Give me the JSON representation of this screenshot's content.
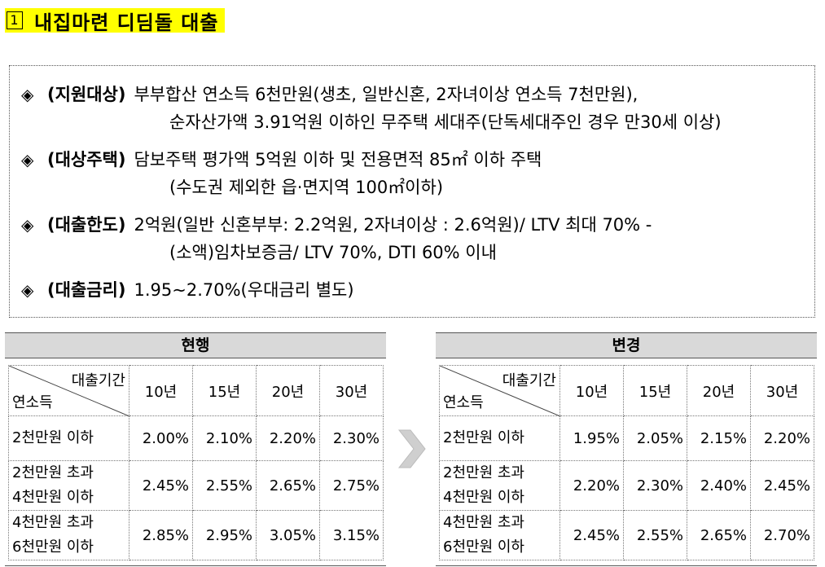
{
  "title": {
    "number": "1",
    "text": "내집마련 디딤돌 대출"
  },
  "info": {
    "bullet": "◈",
    "rows": [
      {
        "label": "(지원대상)",
        "line1": "부부합산 연소득 6천만원(생초, 일반신혼, 2자녀이상 연소득 7천만원),",
        "line2": "순자산가액 3.91억원 이하인 무주택 세대주(단독세대주인 경우 만30세 이상)"
      },
      {
        "label": "(대상주택)",
        "line1": "담보주택 평가액 5억원 이하 및 전용면적 85㎡ 이하 주택",
        "line2": "(수도권 제외한 읍·면지역 100㎡이하)"
      },
      {
        "label": "(대출한도)",
        "line1": "2억원(일반 신혼부부: 2.2억원, 2자녀이상 : 2.6억원)/ LTV 최대 70% -",
        "line2": "(소액)임차보증금/ LTV 70%, DTI 60% 이내"
      },
      {
        "label": "(대출금리)",
        "line1": "1.95∼2.70%(우대금리 별도)",
        "line2": ""
      }
    ]
  },
  "current": {
    "header": "현행",
    "corner_top": "대출기간",
    "corner_bottom": "연소득",
    "periods": [
      "10년",
      "15년",
      "20년",
      "30년"
    ],
    "rows": [
      {
        "income1": "2천만원 이하",
        "income2": "",
        "rates": [
          "2.00%",
          "2.10%",
          "2.20%",
          "2.30%"
        ]
      },
      {
        "income1": "2천만원 초과",
        "income2": "4천만원 이하",
        "rates": [
          "2.45%",
          "2.55%",
          "2.65%",
          "2.75%"
        ]
      },
      {
        "income1": "4천만원 초과",
        "income2": "6천만원 이하",
        "rates": [
          "2.85%",
          "2.95%",
          "3.05%",
          "3.15%"
        ]
      }
    ]
  },
  "changed": {
    "header": "변경",
    "corner_top": "대출기간",
    "corner_bottom": "연소득",
    "periods": [
      "10년",
      "15년",
      "20년",
      "30년"
    ],
    "rows": [
      {
        "income1": "2천만원 이하",
        "income2": "",
        "rates": [
          "1.95%",
          "2.05%",
          "2.15%",
          "2.20%"
        ]
      },
      {
        "income1": "2천만원 초과",
        "income2": "4천만원 이하",
        "rates": [
          "2.20%",
          "2.30%",
          "2.40%",
          "2.45%"
        ]
      },
      {
        "income1": "4천만원 초과",
        "income2": "6천만원 이하",
        "rates": [
          "2.45%",
          "2.55%",
          "2.65%",
          "2.70%"
        ]
      }
    ]
  },
  "colors": {
    "title_highlight": "#ffff00",
    "header_bg": "#d9d9d9",
    "arrow": "#d0d0d0"
  }
}
